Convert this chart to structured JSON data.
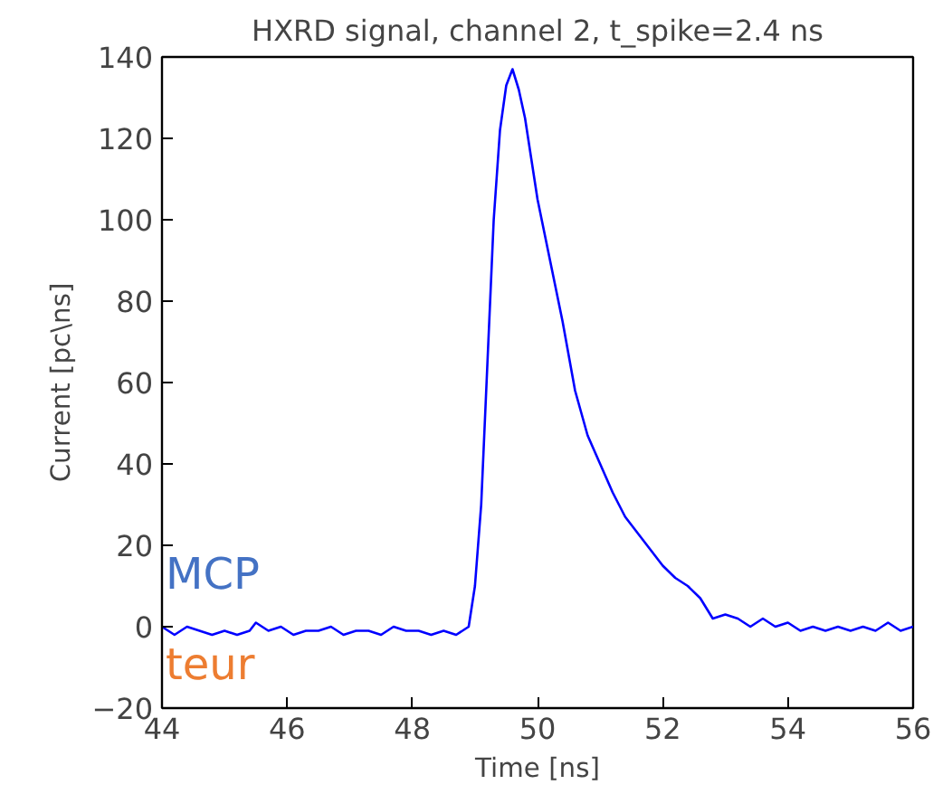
{
  "chart_data": {
    "type": "line",
    "title": "HXRD signal, channel 2, t_spike=2.4 ns",
    "xlabel": "Time [ns]",
    "ylabel": "Current [pc\\ns]",
    "xlim": [
      44,
      56
    ],
    "xticks": [
      44,
      46,
      48,
      50,
      52,
      54,
      56
    ],
    "ylim": [
      -20,
      140
    ],
    "yticks": [
      -20,
      0,
      20,
      40,
      60,
      80,
      100,
      120,
      140
    ],
    "grid": false,
    "marker": "none",
    "line_style": "solid",
    "annotations": [
      "MCP",
      "teur"
    ],
    "series": [
      {
        "color": "#0000ff",
        "x": [
          44.0,
          44.2,
          44.4,
          44.6,
          44.8,
          45.0,
          45.2,
          45.4,
          45.5,
          45.7,
          45.9,
          46.1,
          46.3,
          46.5,
          46.7,
          46.9,
          47.1,
          47.3,
          47.5,
          47.7,
          47.9,
          48.1,
          48.3,
          48.5,
          48.7,
          48.8,
          48.9,
          49.0,
          49.1,
          49.2,
          49.3,
          49.4,
          49.5,
          49.6,
          49.7,
          49.8,
          49.9,
          50.0,
          50.2,
          50.4,
          50.6,
          50.8,
          51.0,
          51.2,
          51.4,
          51.6,
          51.8,
          52.0,
          52.2,
          52.4,
          52.6,
          52.8,
          53.0,
          53.2,
          53.4,
          53.6,
          53.8,
          54.0,
          54.2,
          54.4,
          54.6,
          54.8,
          55.0,
          55.2,
          55.4,
          55.6,
          55.8,
          56.0
        ],
        "values": [
          0,
          -2,
          0,
          -1,
          -2,
          -1,
          -2,
          -1,
          1,
          -1,
          0,
          -2,
          -1,
          -1,
          0,
          -2,
          -1,
          -1,
          -2,
          0,
          -1,
          -1,
          -2,
          -1,
          -2,
          -1,
          0,
          10,
          30,
          65,
          100,
          122,
          133,
          137,
          132,
          125,
          115,
          105,
          90,
          75,
          58,
          47,
          40,
          33,
          27,
          23,
          19,
          15,
          12,
          10,
          7,
          2,
          3,
          2,
          0,
          2,
          0,
          1,
          -1,
          0,
          -1,
          0,
          -1,
          0,
          -1,
          1,
          -1,
          0
        ]
      }
    ]
  }
}
